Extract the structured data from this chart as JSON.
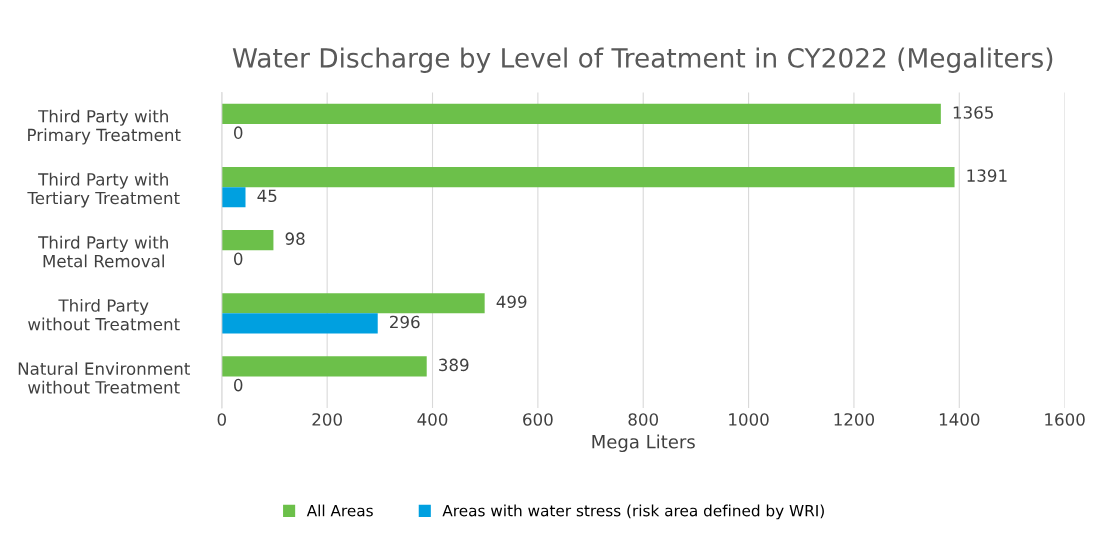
{
  "chart_data": {
    "type": "bar",
    "orientation": "horizontal",
    "title": "Water Discharge by Level of Treatment in CY2022 (Megaliters)",
    "xlabel": "Mega Liters",
    "categories": [
      "Third Party with\nPrimary Treatment",
      "Third Party with\nTertiary Treatment",
      "Third Party with\nMetal Removal",
      "Third Party\nwithout Treatment",
      "Natural Environment\nwithout Treatment"
    ],
    "series": [
      {
        "name": "All Areas",
        "color": "#6cc04a",
        "values": [
          1365,
          1391,
          98,
          499,
          389
        ]
      },
      {
        "name": "Areas with water stress (risk area defined by WRI)",
        "color": "#00a0e0",
        "values": [
          0,
          45,
          0,
          296,
          0
        ]
      }
    ],
    "xlim": [
      0,
      1600
    ],
    "xticks": [
      0,
      200,
      400,
      600,
      800,
      1000,
      1200,
      1400,
      1600
    ],
    "grid": "x",
    "legend": "bottom",
    "data_labels": true
  }
}
